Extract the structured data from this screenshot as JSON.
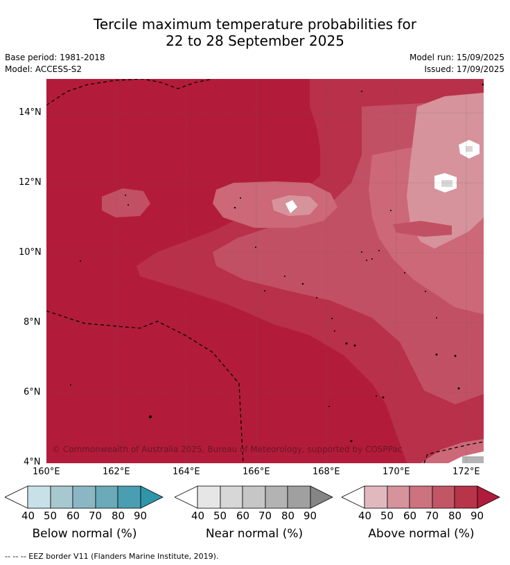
{
  "title_line1": "Tercile maximum temperature probabilities for",
  "title_line2": "22 to 28 September 2025",
  "base_period": "Base period: 1981-2018",
  "model": "Model: ACCESS-S2",
  "model_run": "Model run: 15/09/2025",
  "issued": "Issued: 17/09/2025",
  "copyright": "© Commonwealth of Australia 2025, Bureau of Meteorology, supported by COSPPac",
  "lat_labels": [
    "14°N",
    "12°N",
    "10°N",
    "8°N",
    "6°N",
    "4°N"
  ],
  "lon_labels": [
    "160°E",
    "162°E",
    "164°E",
    "166°E",
    "168°E",
    "170°E",
    "172°E"
  ],
  "colorbars": [
    {
      "name": "below",
      "title": "Below normal (%)",
      "ticks": [
        "40",
        "50",
        "60",
        "70",
        "80",
        "90"
      ],
      "colors": [
        "#ffffff",
        "#c8e1e8",
        "#a8c8cf",
        "#8bb7c5",
        "#6aaab9",
        "#4a9eb1",
        "#2f95a8"
      ]
    },
    {
      "name": "near",
      "title": "Near normal (%)",
      "ticks": [
        "40",
        "50",
        "60",
        "70",
        "80",
        "90"
      ],
      "colors": [
        "#ffffff",
        "#e6e6e6",
        "#d7d7d7",
        "#c6c6c6",
        "#b3b3b3",
        "#a0a0a0",
        "#858585"
      ]
    },
    {
      "name": "above",
      "title": "Above normal (%)",
      "ticks": [
        "40",
        "50",
        "60",
        "70",
        "80",
        "90"
      ],
      "colors": [
        "#ffffff",
        "#e2b8bf",
        "#d6939c",
        "#cc737f",
        "#c35665",
        "#b83449",
        "#b01c3b"
      ]
    }
  ],
  "footnote": "--  --  -- EEZ border V11 (Flanders Marine Institute, 2019)."
}
